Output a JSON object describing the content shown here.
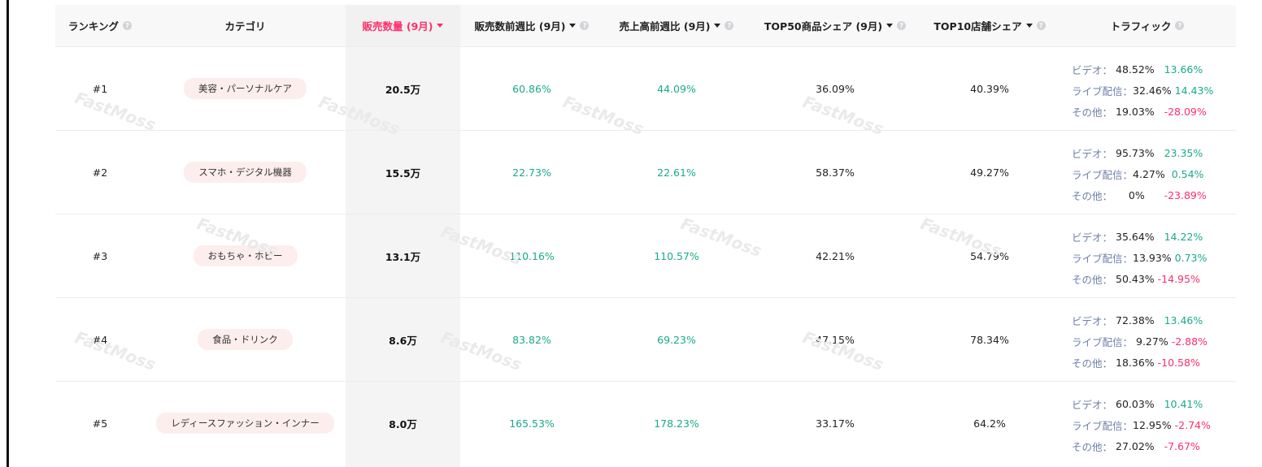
{
  "headers": {
    "ranking": "ランキング",
    "category": "カテゴリ",
    "sales": "販売数量 (9月)",
    "sales_wow": "販売数前週比 (9月)",
    "revenue_wow": "売上高前週比 (9月)",
    "top50_share": "TOP50商品シェア (9月)",
    "top10_share": "TOP10店舗シェア",
    "traffic": "トラフィック"
  },
  "watermark": "FastMoss",
  "colors": {
    "accent": "#ff2d6a",
    "positive": "#1aa98a",
    "pill": "#fdeeee"
  },
  "rows": [
    {
      "rank": "#1",
      "category": "美容・パーソナルケア",
      "sales": "20.5万",
      "sales_wow": "60.86%",
      "revenue_wow": "44.09%",
      "top50": "36.09%",
      "top10": "40.39%",
      "traffic": [
        {
          "label": "ビデオ：",
          "value": "48.52%",
          "change": "13.66%"
        },
        {
          "label": "ライブ配信：",
          "value": "32.46%",
          "change": "14.43%"
        },
        {
          "label": "その他：",
          "value": "19.03%",
          "change": "-28.09%"
        }
      ]
    },
    {
      "rank": "#2",
      "category": "スマホ・デジタル機器",
      "sales": "15.5万",
      "sales_wow": "22.73%",
      "revenue_wow": "22.61%",
      "top50": "58.37%",
      "top10": "49.27%",
      "traffic": [
        {
          "label": "ビデオ：",
          "value": "95.73%",
          "change": "23.35%"
        },
        {
          "label": "ライブ配信：",
          "value": "4.27%",
          "change": "0.54%"
        },
        {
          "label": "その他：",
          "value": "0%",
          "change": "-23.89%"
        }
      ]
    },
    {
      "rank": "#3",
      "category": "おもちゃ・ホビー",
      "sales": "13.1万",
      "sales_wow": "110.16%",
      "revenue_wow": "110.57%",
      "top50": "42.21%",
      "top10": "54.79%",
      "traffic": [
        {
          "label": "ビデオ：",
          "value": "35.64%",
          "change": "14.22%"
        },
        {
          "label": "ライブ配信：",
          "value": "13.93%",
          "change": "0.73%"
        },
        {
          "label": "その他：",
          "value": "50.43%",
          "change": "-14.95%"
        }
      ]
    },
    {
      "rank": "#4",
      "category": "食品・ドリンク",
      "sales": "8.6万",
      "sales_wow": "83.82%",
      "revenue_wow": "69.23%",
      "top50": "47.15%",
      "top10": "78.34%",
      "traffic": [
        {
          "label": "ビデオ：",
          "value": "72.38%",
          "change": "13.46%"
        },
        {
          "label": "ライブ配信：",
          "value": "9.27%",
          "change": "-2.88%"
        },
        {
          "label": "その他：",
          "value": "18.36%",
          "change": "-10.58%"
        }
      ]
    },
    {
      "rank": "#5",
      "category": "レディースファッション・インナー",
      "sales": "8.0万",
      "sales_wow": "165.53%",
      "revenue_wow": "178.23%",
      "top50": "33.17%",
      "top10": "64.2%",
      "traffic": [
        {
          "label": "ビデオ：",
          "value": "60.03%",
          "change": "10.41%"
        },
        {
          "label": "ライブ配信：",
          "value": "12.95%",
          "change": "-2.74%"
        },
        {
          "label": "その他：",
          "value": "27.02%",
          "change": "-7.67%"
        }
      ]
    }
  ]
}
